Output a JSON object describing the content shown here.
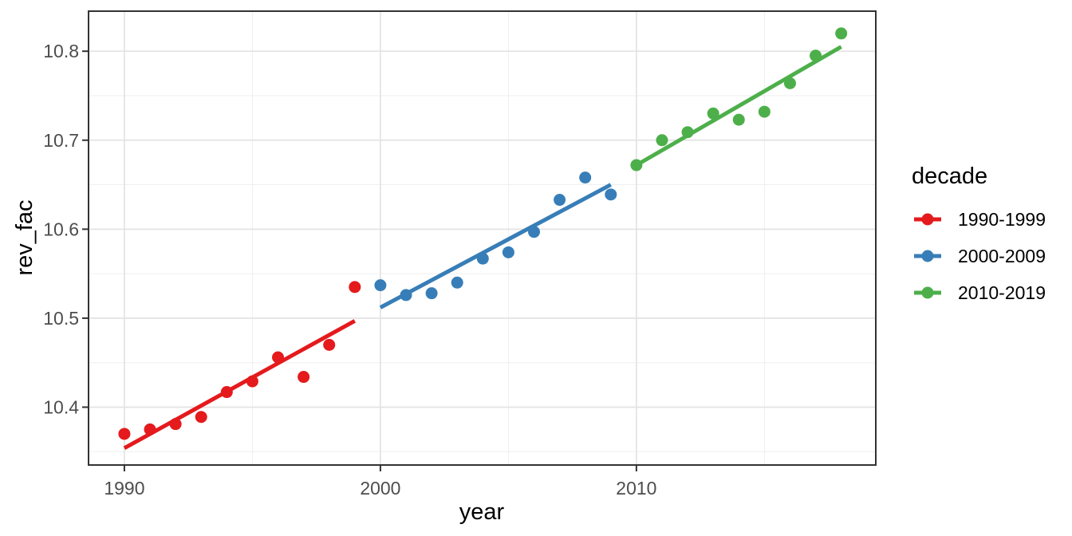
{
  "chart_data": {
    "type": "scatter",
    "title": "",
    "xlabel": "year",
    "ylabel": "rev_fac",
    "legend_title": "decade",
    "legend_position": "right",
    "grid": true,
    "xlim": [
      1988.6,
      2019.35
    ],
    "ylim": [
      10.335,
      10.845
    ],
    "x_ticks": [
      1990,
      2000,
      2010
    ],
    "x_minor_ticks": [
      1995,
      2005,
      2015
    ],
    "y_ticks": [
      10.4,
      10.5,
      10.6,
      10.7,
      10.8
    ],
    "y_minor_ticks": [
      10.35,
      10.45,
      10.55,
      10.65,
      10.75
    ],
    "series": [
      {
        "name": "1990-1999",
        "color": "#E41A1C",
        "x": [
          1990,
          1991,
          1992,
          1993,
          1994,
          1995,
          1996,
          1997,
          1998,
          1999
        ],
        "y": [
          10.37,
          10.375,
          10.381,
          10.389,
          10.417,
          10.429,
          10.456,
          10.434,
          10.47,
          10.535
        ],
        "trend": {
          "x1": 1990,
          "y1": 10.354,
          "x2": 1999,
          "y2": 10.497
        }
      },
      {
        "name": "2000-2009",
        "color": "#377EB8",
        "x": [
          2000,
          2001,
          2002,
          2003,
          2004,
          2005,
          2006,
          2007,
          2008,
          2009
        ],
        "y": [
          10.537,
          10.526,
          10.528,
          10.54,
          10.567,
          10.574,
          10.597,
          10.633,
          10.658,
          10.639
        ],
        "trend": {
          "x1": 2000,
          "y1": 10.512,
          "x2": 2009,
          "y2": 10.65
        }
      },
      {
        "name": "2010-2019",
        "color": "#4DAF4A",
        "x": [
          2010,
          2011,
          2012,
          2013,
          2014,
          2015,
          2016,
          2017,
          2018
        ],
        "y": [
          10.672,
          10.7,
          10.709,
          10.73,
          10.723,
          10.732,
          10.764,
          10.795,
          10.82
        ],
        "trend": {
          "x1": 2010,
          "y1": 10.672,
          "x2": 2018,
          "y2": 10.805
        }
      }
    ]
  }
}
